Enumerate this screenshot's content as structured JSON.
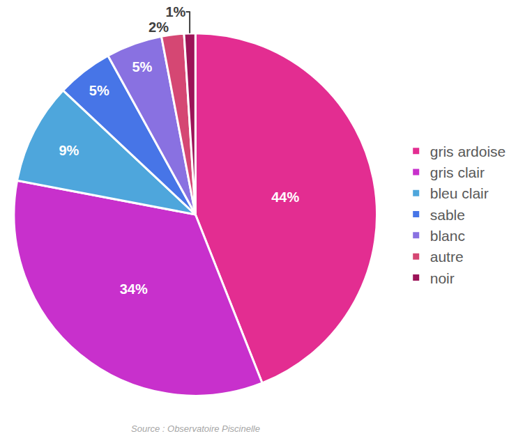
{
  "chart_data": {
    "type": "pie",
    "categories": [
      "gris ardoise",
      "gris clair",
      "bleu clair",
      "sable",
      "blanc",
      "autre",
      "noir"
    ],
    "values": [
      44,
      34,
      9,
      5,
      5,
      2,
      1
    ],
    "value_labels": [
      "44%",
      "34%",
      "9%",
      "5%",
      "5%",
      "2%",
      "1%"
    ],
    "colors": [
      "#e32d91",
      "#c830cc",
      "#4ea6dc",
      "#4775e7",
      "#8971e1",
      "#d54773",
      "#9c1458"
    ],
    "data_labels": true,
    "legend": "right",
    "annotations": [
      "Source : Observatoire Piscinelle"
    ]
  }
}
